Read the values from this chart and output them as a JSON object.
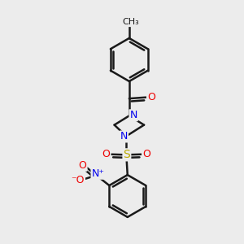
{
  "background_color": "#ececec",
  "bond_color": "#1a1a1a",
  "bond_width": 1.8,
  "figsize": [
    3.0,
    3.0
  ],
  "dpi": 100,
  "atom_colors": {
    "N": "#0000ee",
    "O": "#ee0000",
    "S": "#bbaa00",
    "C": "#1a1a1a"
  },
  "xlim": [
    0,
    10
  ],
  "ylim": [
    0,
    10
  ]
}
